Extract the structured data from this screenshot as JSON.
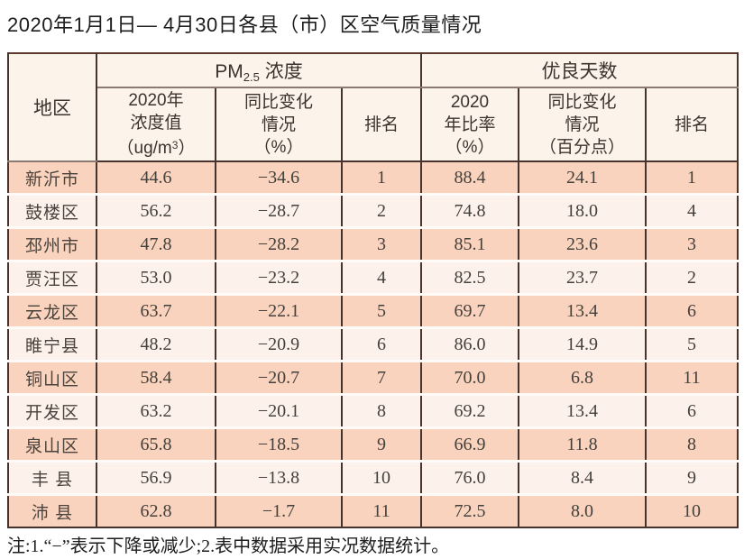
{
  "title": "2020年1月1日— 4月30日各县（市）区空气质量情况",
  "note": "注:1.“−”表示下降或减少;2.表中数据采用实况数据统计。",
  "colors": {
    "row_salmon": "#f9d3bd",
    "row_cream": "#fdf2eb",
    "header_bg": "#fcf4ea",
    "border_dark": "#46332d",
    "text": "#44403c"
  },
  "table": {
    "corner_header": "地区",
    "groups": {
      "pm": {
        "prefix": "PM",
        "subscript": "2.5",
        "suffix": " 浓度"
      },
      "good_days": {
        "label": "优良天数"
      }
    },
    "sub_headers": {
      "pm_value": {
        "line1": "2020年",
        "line2": "浓度值",
        "unit_pre": "（ug/m",
        "unit_sup": "3",
        "unit_post": "）"
      },
      "pm_change": {
        "line1": "同比变化",
        "line2": "情况",
        "line3": "（%）"
      },
      "pm_rank": {
        "line1": "排名"
      },
      "gd_ratio": {
        "line1": "2020",
        "line2": "年比率",
        "line3": "（%）"
      },
      "gd_change": {
        "line1": "同比变化",
        "line2": "情况",
        "line3": "（百分点）"
      },
      "gd_rank": {
        "line1": "排名"
      }
    },
    "rows": [
      {
        "region": "新沂市",
        "cells": [
          "44.6",
          "−34.6",
          "1",
          "88.4",
          "24.1",
          "1"
        ]
      },
      {
        "region": "鼓楼区",
        "cells": [
          "56.2",
          "−28.7",
          "2",
          "74.8",
          "18.0",
          "4"
        ]
      },
      {
        "region": "邳州市",
        "cells": [
          "47.8",
          "−28.2",
          "3",
          "85.1",
          "23.6",
          "3"
        ]
      },
      {
        "region": "贾汪区",
        "cells": [
          "53.0",
          "−23.2",
          "4",
          "82.5",
          "23.7",
          "2"
        ]
      },
      {
        "region": "云龙区",
        "cells": [
          "63.7",
          "−22.1",
          "5",
          "69.7",
          "13.4",
          "6"
        ]
      },
      {
        "region": "睢宁县",
        "cells": [
          "48.2",
          "−20.9",
          "6",
          "86.0",
          "14.9",
          "5"
        ]
      },
      {
        "region": "铜山区",
        "cells": [
          "58.4",
          "−20.7",
          "7",
          "70.0",
          "6.8",
          "11"
        ]
      },
      {
        "region": "开发区",
        "cells": [
          "63.2",
          "−20.1",
          "8",
          "69.2",
          "13.4",
          "6"
        ]
      },
      {
        "region": "泉山区",
        "cells": [
          "65.8",
          "−18.5",
          "9",
          "66.9",
          "11.8",
          "8"
        ]
      },
      {
        "region": "丰 县",
        "cells": [
          "56.9",
          "−13.8",
          "10",
          "76.0",
          "8.4",
          "9"
        ]
      },
      {
        "region": "沛 县",
        "cells": [
          "62.8",
          "−1.7",
          "11",
          "72.5",
          "8.0",
          "10"
        ]
      }
    ]
  }
}
